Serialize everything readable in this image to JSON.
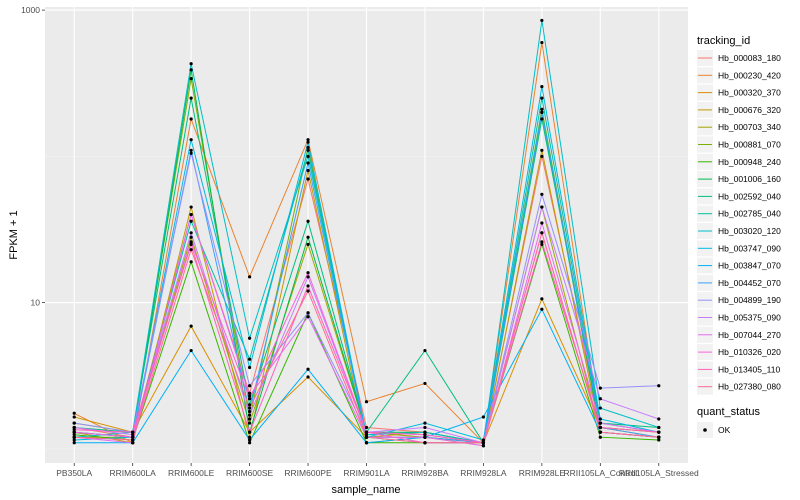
{
  "chart_data": {
    "type": "line",
    "x_label": "sample_name",
    "y_label": "FPKM + 1",
    "y_scale": "log10",
    "y_range": [
      0.8,
      1050
    ],
    "y_ticks": [
      10,
      1000
    ],
    "y_tick_labels": [
      "10",
      "1000"
    ],
    "grid": true,
    "legend_position": "right",
    "categories": [
      "PB350LA",
      "RRIM600LA",
      "RRIM600LE",
      "RRIM600SE",
      "RRIM600PE",
      "RRIM901LA",
      "RRIM928BA",
      "RRIM928LA",
      "RRIM928LE",
      "RRII105LA_Control",
      "RRII105LA_Stressed"
    ],
    "point_legend": {
      "title": "quant_status",
      "label": "OK"
    },
    "series_legend_title": "tracking_id",
    "series": [
      {
        "name": "Hb_000083_180",
        "color": "#F8766D",
        "values": [
          1.4,
          1.2,
          40,
          2.4,
          70,
          1.4,
          1.3,
          1.1,
          100,
          1.5,
          1.3
        ]
      },
      {
        "name": "Hb_000230_420",
        "color": "#EA8331",
        "values": [
          1.75,
          1.1,
          180,
          15,
          130,
          2.1,
          2.8,
          1.1,
          600,
          1.4,
          1.3
        ]
      },
      {
        "name": "Hb_000320_370",
        "color": "#D89000",
        "values": [
          1.65,
          1.3,
          6.9,
          1.3,
          3.1,
          1.2,
          1.3,
          1.1,
          10.6,
          1.4,
          1.2
        ]
      },
      {
        "name": "Hb_000676_320",
        "color": "#C09B00",
        "values": [
          1.3,
          1.1,
          45,
          1.2,
          80,
          1.1,
          1.2,
          1.05,
          110,
          1.3,
          1.2
        ]
      },
      {
        "name": "Hb_000703_340",
        "color": "#A3A500",
        "values": [
          1.2,
          1.2,
          28,
          1.5,
          25,
          1.3,
          1.2,
          1.1,
          45,
          1.3,
          1.2
        ]
      },
      {
        "name": "Hb_000881_070",
        "color": "#7CAE00",
        "values": [
          1.5,
          1.3,
          340,
          1.6,
          115,
          1.2,
          1.2,
          1.1,
          210,
          1.4,
          1.3
        ]
      },
      {
        "name": "Hb_000948_240",
        "color": "#39B600",
        "values": [
          1.25,
          1.15,
          19,
          1.1,
          8.5,
          1.1,
          1.1,
          1.1,
          25,
          1.2,
          1.15
        ]
      },
      {
        "name": "Hb_001006_160",
        "color": "#00BB4E",
        "values": [
          1.3,
          1.2,
          390,
          1.3,
          28,
          1.3,
          1.3,
          1.1,
          200,
          1.3,
          1.2
        ]
      },
      {
        "name": "Hb_002592_040",
        "color": "#00BF7D",
        "values": [
          1.4,
          1.3,
          250,
          2,
          36,
          1.3,
          4.7,
          1.1,
          180,
          1.5,
          1.4
        ]
      },
      {
        "name": "Hb_002785_040",
        "color": "#00C1A3",
        "values": [
          1.3,
          1.2,
          36,
          4.1,
          110,
          1.2,
          1.1,
          1.1,
          250,
          1.5,
          1.3
        ]
      },
      {
        "name": "Hb_003020_120",
        "color": "#00BFC4",
        "values": [
          1.2,
          1.3,
          430,
          5.7,
          100,
          1.25,
          1.3,
          1.1,
          850,
          1.9,
          1.4
        ]
      },
      {
        "name": "Hb_003747_090",
        "color": "#00BAE0",
        "values": [
          1.15,
          1.2,
          130,
          3.6,
          125,
          1.2,
          1.5,
          1.15,
          300,
          1.6,
          1.3
        ]
      },
      {
        "name": "Hb_003847_070",
        "color": "#00B0F6",
        "values": [
          1.1,
          1.1,
          4.7,
          1.15,
          3.5,
          1.1,
          1.2,
          1.65,
          9,
          1.3,
          1.2
        ]
      },
      {
        "name": "Hb_004452_070",
        "color": "#35A2FF",
        "values": [
          1.3,
          1.2,
          110,
          1.8,
          90,
          1.2,
          1.2,
          1.1,
          200,
          1.4,
          1.2
        ]
      },
      {
        "name": "Hb_004899_190",
        "color": "#9590FF",
        "values": [
          1.5,
          1.3,
          105,
          2.7,
          8.5,
          1.3,
          1.25,
          1.1,
          55,
          2.6,
          2.7
        ]
      },
      {
        "name": "Hb_005375_090",
        "color": "#C77CFF",
        "values": [
          1.4,
          1.25,
          30,
          1.7,
          15,
          1.3,
          1.4,
          1.1,
          45,
          2.2,
          1.6
        ]
      },
      {
        "name": "Hb_007044_270",
        "color": "#E76BF3",
        "values": [
          1.2,
          1.1,
          40,
          2.3,
          8,
          1.2,
          1.2,
          1.05,
          35,
          1.5,
          1.3
        ]
      },
      {
        "name": "Hb_010326_020",
        "color": "#FA62DB",
        "values": [
          1.3,
          1.2,
          26,
          2.2,
          16,
          1.3,
          1.1,
          1.1,
          30,
          1.3,
          1.2
        ]
      },
      {
        "name": "Hb_013405_110",
        "color": "#FF62BC",
        "values": [
          1.35,
          1.3,
          25,
          1.3,
          13,
          1.3,
          1.25,
          1.1,
          26,
          1.4,
          1.3
        ]
      },
      {
        "name": "Hb_027380_080",
        "color": "#FF6C91",
        "values": [
          1.2,
          1.15,
          23,
          1.9,
          12,
          1.2,
          1.1,
          1.1,
          30,
          1.3,
          1.2
        ]
      }
    ]
  }
}
